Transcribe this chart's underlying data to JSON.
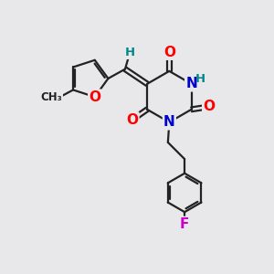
{
  "bg_color": "#e8e8ea",
  "bond_color": "#222222",
  "bond_width": 1.6,
  "atom_colors": {
    "O": "#ff0000",
    "N": "#0000cc",
    "F": "#cc00cc",
    "H": "#008888",
    "C": "#222222"
  },
  "figsize": [
    3.0,
    3.0
  ],
  "dpi": 100,
  "xlim": [
    0,
    10
  ],
  "ylim": [
    0,
    10
  ]
}
